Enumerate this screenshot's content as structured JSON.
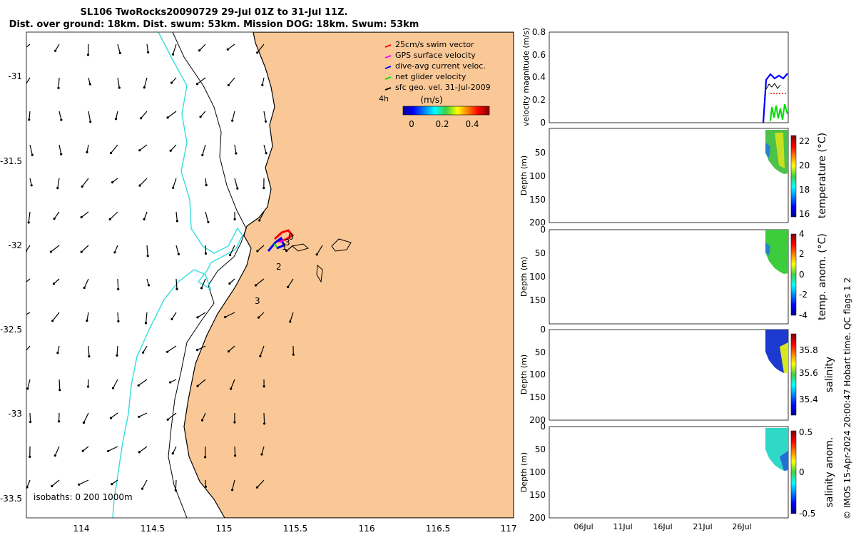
{
  "title_line1": "SL106 TwoRocks20090729 29-Jul 01Z to 31-Jul 11Z.",
  "title_line2": "Dist. over ground: 18km. Dist. swum: 53km. Mission DOG: 18km. Swum: 53km",
  "credit": "© IMOS 15-Apr-2024 20:00:47 Hobart time. QC flags 1  2",
  "colors": {
    "land": "#fac896",
    "isobath_200": "#000000",
    "isobath_1000": "#33dddd",
    "glider_red": "#ff0000",
    "glider_blue": "#0000ff"
  },
  "chart_data": [
    {
      "type": "map",
      "x_ticks": [
        "114",
        "114.5",
        "115",
        "115.5",
        "116",
        "116.5",
        "117"
      ],
      "y_ticks": [
        "-31",
        "-31.5",
        "-32",
        "-32.5",
        "-33",
        "-33.5"
      ],
      "xlim": [
        113.6,
        117
      ],
      "ylim": [
        -33.6,
        -30.75
      ],
      "legend": [
        {
          "label": "25cm/s swim vector",
          "color": "#ff0000"
        },
        {
          "label": "GPS surface velocity",
          "color": "#ff00ff"
        },
        {
          "label": "dive-avg current veloc.",
          "color": "#0000ff"
        },
        {
          "label": "net glider velocity",
          "color": "#00dd00"
        },
        {
          "label": "sfc geo. vel. 31-Jul-2009",
          "color": "#000000"
        }
      ],
      "legend_placement": "top-right",
      "time_marker": "4h",
      "colorbar_label": "(m/s)",
      "colorbar_ticks": [
        "0",
        "0.2",
        "0.4"
      ],
      "isobath_label": "isobaths: 0   200  1000m",
      "track_labels": [
        "0",
        "3",
        "1",
        "2",
        "3"
      ]
    },
    {
      "type": "line",
      "ylabel": "velocity magnitude (m/s)",
      "y_ticks": [
        "0",
        "0.2",
        "0.4",
        "0.6",
        "0.8"
      ],
      "ylim": [
        0,
        0.8
      ]
    },
    {
      "type": "scatter",
      "ylabel": "Depth (m)",
      "y_ticks": [
        "50",
        "100",
        "150",
        "200"
      ],
      "colorbar_label": "temperature (°C)",
      "colorbar_ticks": [
        "16",
        "18",
        "20",
        "22"
      ]
    },
    {
      "type": "scatter",
      "ylabel": "Depth (m)",
      "y_ticks": [
        "0",
        "50",
        "100",
        "150",
        "200"
      ],
      "colorbar_label": "temp. anom. (°C)",
      "colorbar_ticks": [
        "-4",
        "-2",
        "0",
        "2",
        "4"
      ]
    },
    {
      "type": "scatter",
      "ylabel": "Depth (m)",
      "y_ticks": [
        "0",
        "50",
        "100",
        "150",
        "200"
      ],
      "colorbar_label": "salinity",
      "colorbar_ticks": [
        "35.4",
        "35.6",
        "35.8"
      ]
    },
    {
      "type": "scatter",
      "ylabel": "Depth (m)",
      "y_ticks": [
        "0",
        "50",
        "100",
        "150",
        "200"
      ],
      "colorbar_label": "salinity anom.",
      "colorbar_ticks": [
        "-0.5",
        "0",
        "0.5"
      ],
      "x_ticks": [
        "06Jul",
        "11Jul",
        "16Jul",
        "21Jul",
        "26Jul"
      ]
    }
  ]
}
